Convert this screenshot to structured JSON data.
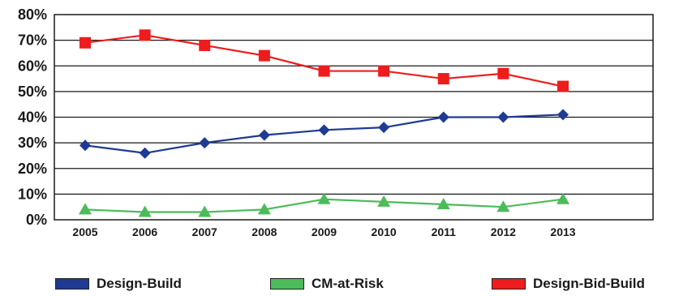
{
  "chart_data": {
    "type": "line",
    "title": "",
    "xlabel": "",
    "ylabel": "",
    "x": [
      "2005",
      "2006",
      "2007",
      "2008",
      "2009",
      "2010",
      "2011",
      "2012",
      "2013"
    ],
    "y_ticks": [
      "0%",
      "10%",
      "20%",
      "30%",
      "40%",
      "50%",
      "60%",
      "70%",
      "80%"
    ],
    "ylim": [
      0,
      80
    ],
    "y_unit": "%",
    "grid": "horizontal",
    "legend_position": "bottom",
    "series": [
      {
        "name": "Design-Build",
        "color": "#1f3a93",
        "marker": "diamond",
        "values": [
          29,
          26,
          30,
          33,
          35,
          36,
          40,
          40,
          41
        ]
      },
      {
        "name": "CM-at-Risk",
        "color": "#4cbb5a",
        "marker": "triangle",
        "values": [
          4,
          3,
          3,
          4,
          8,
          7,
          6,
          5,
          8
        ]
      },
      {
        "name": "Design-Bid-Build",
        "color": "#ee1c1c",
        "marker": "square",
        "values": [
          69,
          72,
          68,
          64,
          58,
          58,
          55,
          57,
          52
        ]
      }
    ]
  }
}
